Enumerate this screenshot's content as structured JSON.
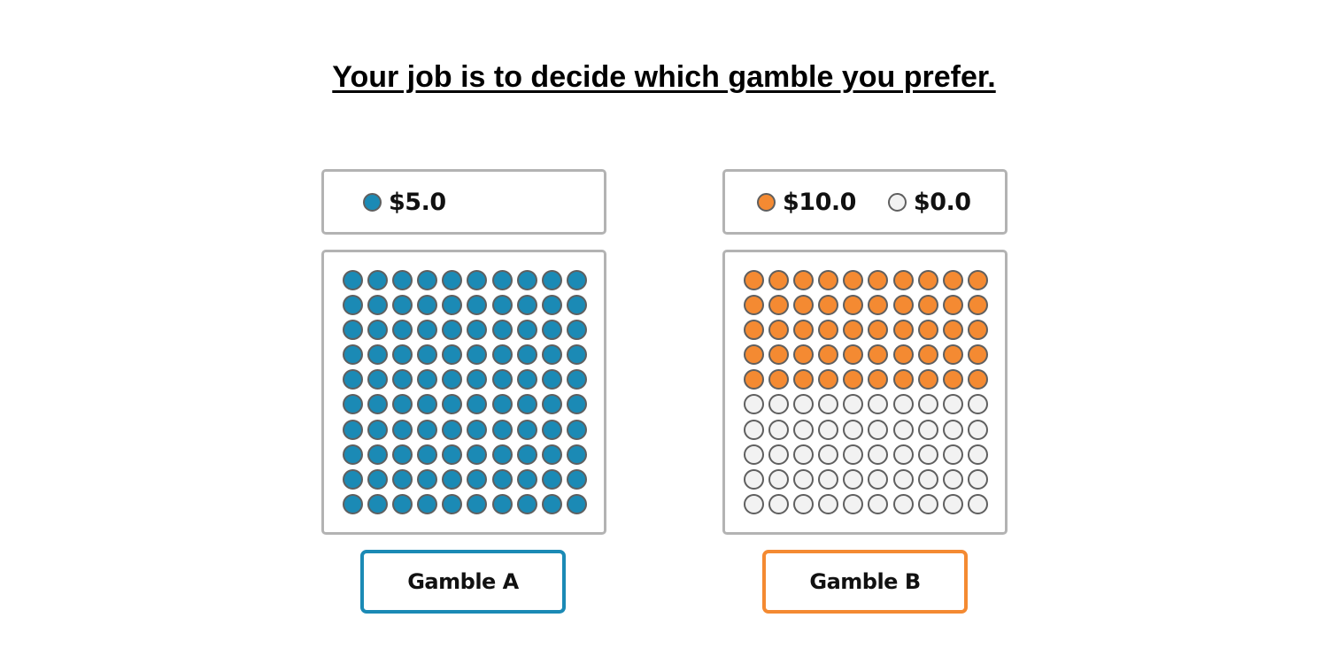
{
  "instruction": "Your job is to decide which gamble you prefer.",
  "colors": {
    "blue": "#1b8ab5",
    "orange": "#f48a32",
    "empty": "#f2f2f2",
    "dot_border": "#5f5f5f"
  },
  "gambles": [
    {
      "id": "a",
      "button_label": "Gamble A",
      "outcomes": [
        {
          "label": "$5.0",
          "color": "#1b8ab5",
          "count": 100
        }
      ]
    },
    {
      "id": "b",
      "button_label": "Gamble B",
      "outcomes": [
        {
          "label": "$10.0",
          "color": "#f48a32",
          "count": 50
        },
        {
          "label": "$0.0",
          "color": "#f2f2f2",
          "count": 50
        }
      ]
    }
  ]
}
